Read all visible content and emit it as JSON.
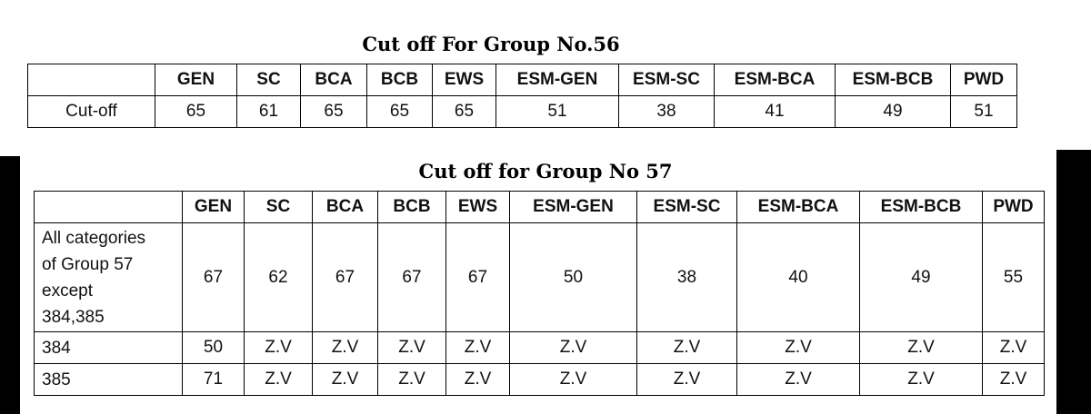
{
  "group56": {
    "title": "Cut off For Group No.56",
    "header": [
      "GEN",
      "SC",
      "BCA",
      "BCB",
      "EWS",
      "ESM-GEN",
      "ESM-SC",
      "ESM-BCA",
      "ESM-BCB",
      "PWD"
    ],
    "rows": [
      {
        "label": [
          "Cut-off"
        ],
        "values": [
          65,
          61,
          65,
          65,
          65,
          51,
          38,
          41,
          49,
          51
        ]
      }
    ]
  },
  "group57": {
    "title": "Cut off for Group No 57",
    "header": [
      "GEN",
      "SC",
      "BCA",
      "BCB",
      "EWS",
      "ESM-GEN",
      "ESM-SC",
      "ESM-BCA",
      "ESM-BCB",
      "PWD"
    ],
    "rows": [
      {
        "label": [
          "All categories",
          "of Group 57",
          "except",
          "384,385"
        ],
        "values": [
          67,
          62,
          67,
          67,
          67,
          50,
          38,
          40,
          49,
          55
        ]
      },
      {
        "label": [
          "384"
        ],
        "values": [
          50,
          "Z.V",
          "Z.V",
          "Z.V",
          "Z.V",
          "Z.V",
          "Z.V",
          "Z.V",
          "Z.V",
          "Z.V"
        ]
      },
      {
        "label": [
          "385"
        ],
        "values": [
          71,
          "Z.V",
          "Z.V",
          "Z.V",
          "Z.V",
          "Z.V",
          "Z.V",
          "Z.V",
          "Z.V",
          "Z.V"
        ]
      }
    ]
  }
}
